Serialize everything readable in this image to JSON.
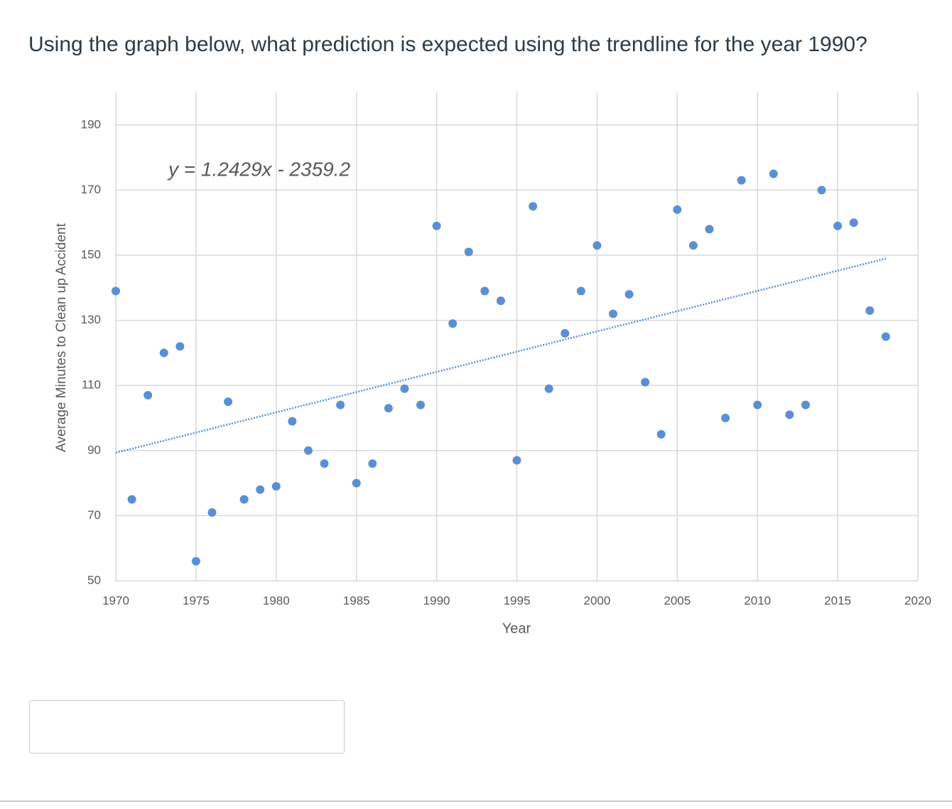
{
  "question": "Using the graph below, what prediction is expected using the trendline for the year 1990?",
  "chart_data": {
    "type": "scatter",
    "x_label": "Year",
    "y_label": "Average Minutes to Clean up Accident",
    "annotation": "y = 1.2429x - 2359.2",
    "x": [
      1970,
      1971,
      1972,
      1973,
      1974,
      1975,
      1976,
      1977,
      1978,
      1979,
      1980,
      1981,
      1982,
      1983,
      1984,
      1985,
      1986,
      1987,
      1988,
      1989,
      1990,
      1991,
      1992,
      1993,
      1994,
      1995,
      1996,
      1997,
      1998,
      1999,
      2000,
      2001,
      2002,
      2003,
      2004,
      2005,
      2006,
      2007,
      2008,
      2009,
      2010,
      2011,
      2012,
      2013,
      2014,
      2015,
      2016,
      2017,
      2018
    ],
    "values": [
      139,
      75,
      107,
      120,
      122,
      56,
      71,
      105,
      75,
      78,
      79,
      99,
      90,
      86,
      104,
      80,
      86,
      103,
      109,
      104,
      159,
      129,
      151,
      139,
      136,
      87,
      165,
      109,
      126,
      139,
      153,
      132,
      138,
      111,
      95,
      164,
      153,
      158,
      100,
      173,
      104,
      175,
      101,
      104,
      170,
      159,
      160,
      133,
      125
    ],
    "color": "#5b8fd4",
    "trendline": {
      "slope": 1.2429,
      "intercept": -2359.2,
      "color": "#5b8fd4"
    },
    "xlim": [
      1970,
      2020
    ],
    "xticks": [
      1970,
      1975,
      1980,
      1985,
      1990,
      1995,
      2000,
      2005,
      2010,
      2015,
      2020
    ],
    "ylim": [
      50,
      200
    ],
    "yticks": [
      50,
      70,
      90,
      110,
      130,
      150,
      170,
      190
    ],
    "grid": true
  }
}
